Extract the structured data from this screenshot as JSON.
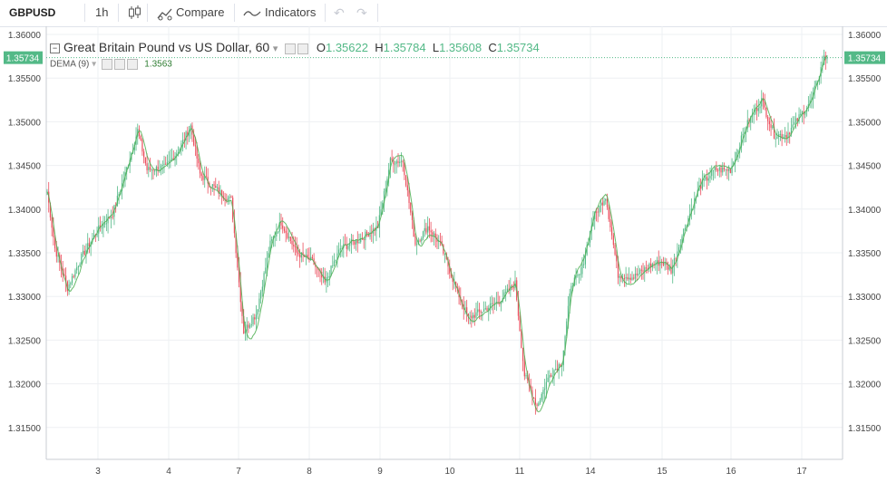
{
  "toolbar": {
    "symbol": "GBPUSD",
    "interval": "1h",
    "compare_label": "Compare",
    "indicators_label": "Indicators",
    "undo_glyph": "↶",
    "redo_glyph": "↷"
  },
  "legend": {
    "title": "Great Britain Pound vs US Dollar, 60",
    "dropdown_glyph": "▾",
    "o_label": "O",
    "o_value": "1.35622",
    "h_label": "H",
    "h_value": "1.35784",
    "l_label": "L",
    "l_value": "1.35608",
    "c_label": "C",
    "c_value": "1.35734",
    "indicator_name": "DEMA (9)",
    "indicator_value": "1.3563"
  },
  "colors": {
    "up": "#53b987",
    "down": "#eb4d5c",
    "dema": "#4caf50",
    "last_price_bg": "#53b987",
    "grid": "#eef0f3"
  },
  "chart_data": {
    "type": "candlestick",
    "symbol": "GBPUSD",
    "interval": "60",
    "y_ticks": [
      "1.36000",
      "1.35500",
      "1.35000",
      "1.34500",
      "1.34000",
      "1.33500",
      "1.33000",
      "1.32500",
      "1.32000",
      "1.31500"
    ],
    "x_ticks": [
      "3",
      "4",
      "7",
      "8",
      "9",
      "10",
      "11",
      "14",
      "15",
      "16",
      "17"
    ],
    "last_price": "1.35734",
    "ylim": [
      1.3115,
      1.3605
    ],
    "grid": true,
    "close_path": [
      {
        "t": 0,
        "p": 1.342
      },
      {
        "t": 5,
        "p": 1.3355
      },
      {
        "t": 13,
        "p": 1.331
      },
      {
        "t": 22,
        "p": 1.3345
      },
      {
        "t": 32,
        "p": 1.3375
      },
      {
        "t": 42,
        "p": 1.3395
      },
      {
        "t": 50,
        "p": 1.344
      },
      {
        "t": 58,
        "p": 1.349
      },
      {
        "t": 64,
        "p": 1.3445
      },
      {
        "t": 76,
        "p": 1.3448
      },
      {
        "t": 85,
        "p": 1.347
      },
      {
        "t": 92,
        "p": 1.3495
      },
      {
        "t": 98,
        "p": 1.344
      },
      {
        "t": 110,
        "p": 1.342
      },
      {
        "t": 118,
        "p": 1.341
      },
      {
        "t": 126,
        "p": 1.326
      },
      {
        "t": 134,
        "p": 1.328
      },
      {
        "t": 143,
        "p": 1.336
      },
      {
        "t": 150,
        "p": 1.3385
      },
      {
        "t": 160,
        "p": 1.335
      },
      {
        "t": 170,
        "p": 1.334
      },
      {
        "t": 178,
        "p": 1.3315
      },
      {
        "t": 188,
        "p": 1.3355
      },
      {
        "t": 200,
        "p": 1.3365
      },
      {
        "t": 212,
        "p": 1.338
      },
      {
        "t": 220,
        "p": 1.3455
      },
      {
        "t": 228,
        "p": 1.3455
      },
      {
        "t": 236,
        "p": 1.336
      },
      {
        "t": 244,
        "p": 1.338
      },
      {
        "t": 252,
        "p": 1.336
      },
      {
        "t": 262,
        "p": 1.331
      },
      {
        "t": 270,
        "p": 1.3275
      },
      {
        "t": 280,
        "p": 1.3285
      },
      {
        "t": 290,
        "p": 1.3295
      },
      {
        "t": 300,
        "p": 1.3315
      },
      {
        "t": 306,
        "p": 1.321
      },
      {
        "t": 314,
        "p": 1.3175
      },
      {
        "t": 322,
        "p": 1.321
      },
      {
        "t": 330,
        "p": 1.3225
      },
      {
        "t": 336,
        "p": 1.3315
      },
      {
        "t": 342,
        "p": 1.3325
      },
      {
        "t": 350,
        "p": 1.339
      },
      {
        "t": 358,
        "p": 1.3415
      },
      {
        "t": 366,
        "p": 1.3325
      },
      {
        "t": 376,
        "p": 1.3322
      },
      {
        "t": 386,
        "p": 1.3335
      },
      {
        "t": 394,
        "p": 1.334
      },
      {
        "t": 400,
        "p": 1.333
      },
      {
        "t": 408,
        "p": 1.3375
      },
      {
        "t": 418,
        "p": 1.3425
      },
      {
        "t": 428,
        "p": 1.3445
      },
      {
        "t": 438,
        "p": 1.3445
      },
      {
        "t": 448,
        "p": 1.3495
      },
      {
        "t": 458,
        "p": 1.3525
      },
      {
        "t": 466,
        "p": 1.3485
      },
      {
        "t": 474,
        "p": 1.3485
      },
      {
        "t": 482,
        "p": 1.3505
      },
      {
        "t": 490,
        "p": 1.3525
      },
      {
        "t": 498,
        "p": 1.3573
      }
    ]
  }
}
